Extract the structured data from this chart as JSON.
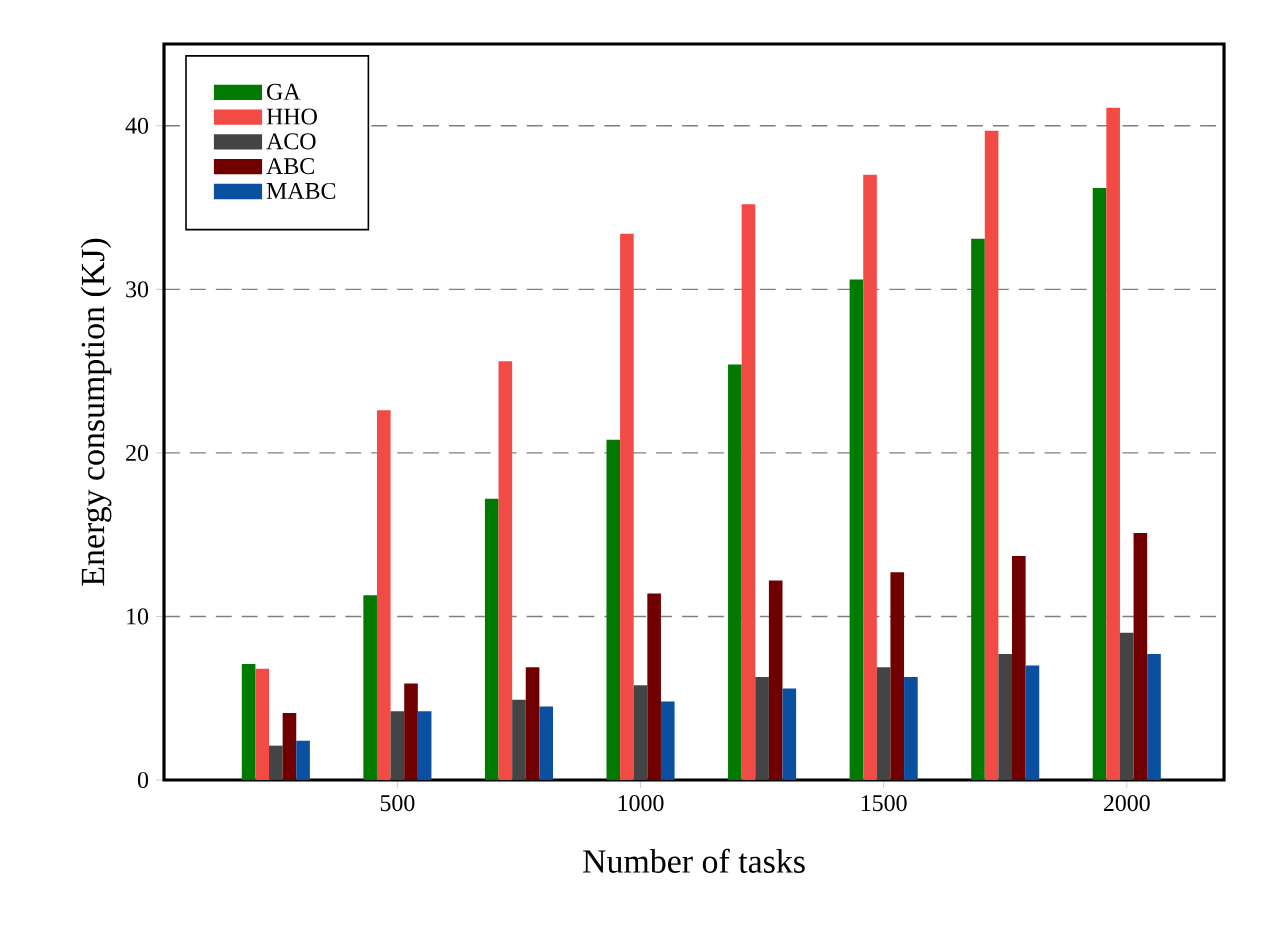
{
  "chart_data": {
    "type": "bar",
    "xlabel": "Number of tasks",
    "ylabel": "Energy consumption (KJ)",
    "x": [
      250,
      500,
      750,
      1000,
      1250,
      1500,
      1750,
      2000
    ],
    "series": [
      {
        "name": "GA",
        "color": "#007a00",
        "values": [
          7.1,
          11.3,
          17.2,
          20.8,
          25.4,
          30.6,
          33.1,
          36.2
        ]
      },
      {
        "name": "HHO",
        "color": "#f24a45",
        "values": [
          6.8,
          22.6,
          25.6,
          33.4,
          35.2,
          37.0,
          39.7,
          41.1
        ]
      },
      {
        "name": "ACO",
        "color": "#444444",
        "values": [
          2.1,
          4.2,
          4.9,
          5.8,
          6.3,
          6.9,
          7.7,
          9.0
        ]
      },
      {
        "name": "ABC",
        "color": "#700000",
        "values": [
          4.1,
          5.9,
          6.9,
          11.4,
          12.2,
          12.7,
          13.7,
          15.1
        ]
      },
      {
        "name": "MABC",
        "color": "#0a4fa0",
        "values": [
          2.4,
          4.2,
          4.5,
          4.8,
          5.6,
          6.3,
          7.0,
          7.7
        ]
      }
    ],
    "xlim": [
      20,
      2200
    ],
    "xticks": [
      500,
      1000,
      1500,
      2000
    ],
    "ylim": [
      0,
      45
    ],
    "yticks": [
      0,
      10,
      20,
      30,
      40
    ],
    "grid": "y",
    "legend": "top left"
  }
}
